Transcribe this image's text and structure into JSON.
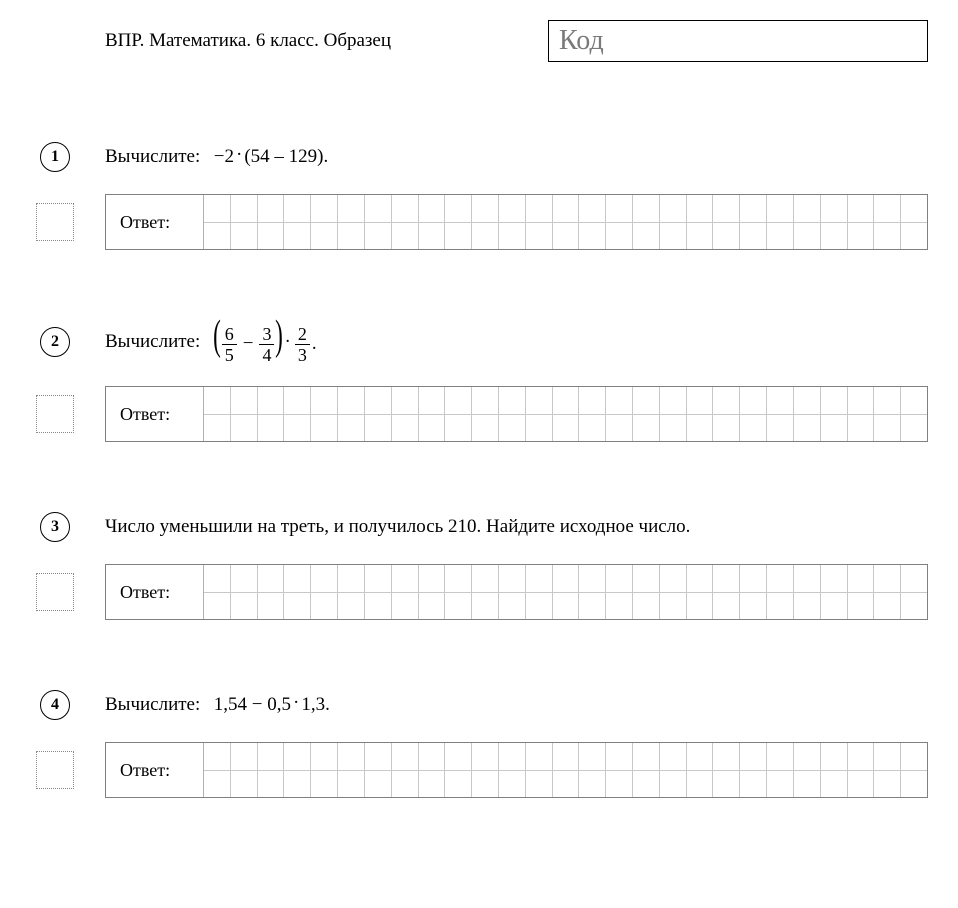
{
  "header": {
    "title": "ВПР. Математика. 6 класс. Образец",
    "code_placeholder": "Код"
  },
  "grid": {
    "cols": 27
  },
  "answer_label": "Ответ:",
  "problems": [
    {
      "number": "1",
      "prompt_prefix": "Вычислите:",
      "math": {
        "type": "expr1",
        "a": "−2",
        "b": "54",
        "c": "129"
      }
    },
    {
      "number": "2",
      "prompt_prefix": "Вычислите:",
      "math": {
        "type": "expr2",
        "f1": {
          "n": "6",
          "d": "5"
        },
        "f2": {
          "n": "3",
          "d": "4"
        },
        "f3": {
          "n": "2",
          "d": "3"
        }
      }
    },
    {
      "number": "3",
      "prompt_text": "Число уменьшили на треть, и получилось 210. Найдите исходное число."
    },
    {
      "number": "4",
      "prompt_prefix": "Вычислите:",
      "math": {
        "type": "expr4",
        "a": "1,54",
        "b": "0,5",
        "c": "1,3"
      }
    }
  ],
  "style": {
    "page_bg": "#ffffff",
    "text_color": "#000000",
    "border_color": "#808080",
    "grid_line_color": "#c8c8c8",
    "dotted_color": "#888888",
    "code_text_color": "#7a7a7a"
  }
}
